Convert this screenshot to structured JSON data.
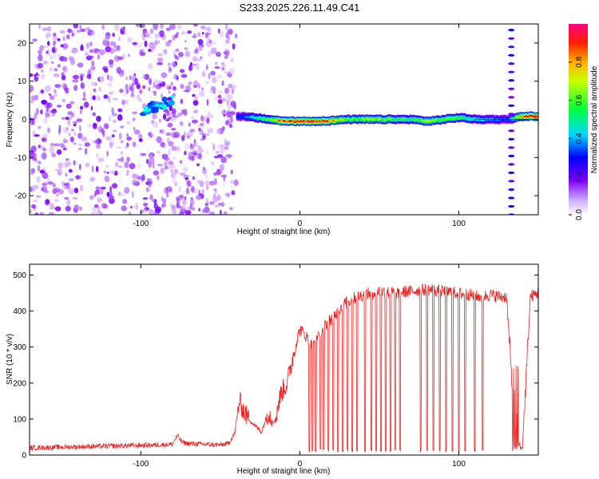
{
  "title": "S233.2025.226.11.49.C41",
  "chart_data": [
    {
      "type": "heatmap",
      "xlabel": "Height of straight line (km)",
      "ylabel": "Frequency (Hz)",
      "xlim": [
        -170,
        150
      ],
      "ylim": [
        -25,
        25
      ],
      "x_ticks": [
        -100,
        0,
        100
      ],
      "y_ticks": [
        -20,
        -10,
        0,
        10,
        20
      ],
      "grid": false,
      "colorbar": {
        "label": "Normalized spectral amplitude",
        "range": [
          0,
          1
        ],
        "ticks": [
          0.0,
          0.2,
          0.4,
          0.6,
          0.8
        ],
        "tick_labels": [
          "0.0",
          "0.2",
          "0.4",
          "0.6",
          "0.8"
        ],
        "colormap": [
          "#ffffff",
          "#8000ff",
          "#0000ff",
          "#00ffff",
          "#00ff00",
          "#ffff00",
          "#ff0000",
          "#ff0080"
        ]
      },
      "ridge": {
        "x": [
          -40,
          -30,
          -20,
          -10,
          0,
          10,
          20,
          30,
          40,
          50,
          60,
          70,
          80,
          90,
          100,
          110,
          120,
          130,
          140,
          150
        ],
        "frequency": [
          0.8,
          0.5,
          0.0,
          -0.5,
          -0.5,
          -0.5,
          -0.3,
          0.0,
          0.0,
          0.0,
          0.0,
          0.0,
          -0.5,
          0.0,
          0.5,
          0.0,
          0.0,
          0.0,
          0.8,
          0.8
        ],
        "amplitude": [
          0.3,
          0.45,
          0.6,
          0.9,
          0.9,
          0.95,
          0.8,
          0.6,
          0.65,
          0.7,
          0.6,
          0.6,
          0.7,
          0.6,
          0.6,
          0.5,
          0.4,
          0.35,
          0.9,
          0.95
        ]
      },
      "noise_region": {
        "x": [
          -170,
          -40
        ],
        "frequency": [
          -25,
          25
        ],
        "amplitude": 0.15
      },
      "diagonal_feature": {
        "x": [
          -100,
          -80
        ],
        "frequency": [
          2,
          5
        ],
        "amplitude": 0.3
      },
      "vertical_stripe": {
        "x": 133,
        "frequency": [
          -25,
          25
        ],
        "amplitude": 0.15
      }
    },
    {
      "type": "line",
      "xlabel": "Height of straight line (km)",
      "ylabel": "SNR (10 * v/v)",
      "xlim": [
        -170,
        150
      ],
      "ylim": [
        0,
        530
      ],
      "x_ticks": [
        -100,
        0,
        100
      ],
      "y_ticks": [
        0,
        100,
        200,
        300,
        400,
        500
      ],
      "grid": false,
      "series": [
        {
          "color": "#ee2222",
          "x": [
            -170,
            -150,
            -130,
            -110,
            -90,
            -80,
            -77,
            -74,
            -70,
            -60,
            -50,
            -45,
            -41,
            -38,
            -35,
            -32,
            -28,
            -24,
            -20,
            -16,
            -12,
            -8,
            -4,
            0,
            4,
            8,
            12,
            16,
            20,
            24,
            28,
            32,
            36,
            40,
            44,
            50,
            60,
            70,
            80,
            90,
            100,
            108,
            112,
            120,
            126,
            130,
            136,
            140,
            145,
            150
          ],
          "values": [
            20,
            22,
            24,
            26,
            28,
            30,
            55,
            35,
            32,
            30,
            28,
            32,
            60,
            150,
            120,
            100,
            80,
            65,
            120,
            90,
            170,
            200,
            280,
            350,
            330,
            300,
            340,
            360,
            380,
            400,
            420,
            430,
            440,
            445,
            450,
            455,
            450,
            455,
            460,
            455,
            450,
            445,
            440,
            445,
            440,
            440,
            15,
            20,
            440,
            450
          ]
        }
      ],
      "dropouts_x": [
        6,
        8,
        10,
        13,
        15,
        18,
        21,
        24,
        27,
        30,
        33,
        36,
        41,
        45,
        48,
        51,
        54,
        57,
        60,
        63,
        76,
        80,
        84,
        88,
        92,
        96,
        100,
        104,
        110,
        115
      ]
    }
  ]
}
